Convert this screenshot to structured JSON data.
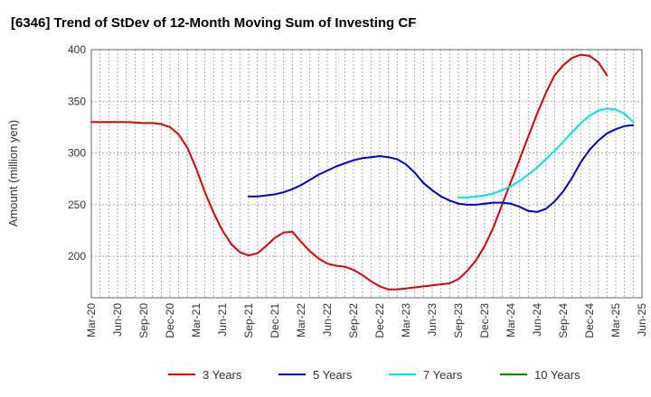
{
  "chart_data": {
    "type": "line",
    "title": "[6346]  Trend of StDev of 12-Month Moving Sum of Investing CF",
    "xlabel": "",
    "ylabel": "Amount (million yen)",
    "ylim": [
      160,
      400
    ],
    "yticks": [
      200,
      250,
      300,
      350,
      400
    ],
    "x_tick_labels": [
      "Mar-20",
      "Jun-20",
      "Sep-20",
      "Dec-20",
      "Mar-21",
      "Jun-21",
      "Sep-21",
      "Dec-21",
      "Mar-22",
      "Jun-22",
      "Sep-22",
      "Dec-22",
      "Mar-23",
      "Jun-23",
      "Sep-23",
      "Dec-23",
      "Mar-24",
      "Jun-24",
      "Sep-24",
      "Dec-24",
      "Mar-25",
      "Jun-25"
    ],
    "grid": true,
    "legend_position": "bottom",
    "series": [
      {
        "name": "3 Years",
        "color": "#dd0000",
        "start_index": 0,
        "values": [
          330,
          330,
          330,
          330,
          330,
          329.5,
          329,
          329,
          328,
          325,
          318,
          305,
          285,
          262,
          242,
          225,
          212,
          204,
          201,
          203,
          210,
          218,
          223,
          224,
          214,
          205,
          198,
          193,
          191,
          190,
          187,
          182,
          176,
          171,
          168,
          168,
          169,
          170,
          171,
          172,
          173,
          174,
          178,
          186,
          196,
          210,
          228,
          250,
          272,
          294,
          316,
          338,
          358,
          375,
          385,
          392,
          395,
          394,
          388,
          375
        ]
      },
      {
        "name": "5 Years",
        "color": "#0000cc",
        "start_index": 18,
        "values": [
          258,
          258,
          259,
          260,
          262,
          265,
          269,
          274,
          279,
          283,
          287,
          290,
          293,
          295,
          296,
          297,
          296,
          294,
          289,
          281,
          271,
          264,
          258,
          254,
          251,
          250,
          250,
          251,
          252,
          252,
          251,
          248,
          244,
          243,
          246,
          253,
          263,
          276,
          291,
          303,
          312,
          319,
          323,
          326,
          327
        ]
      },
      {
        "name": "7 Years",
        "color": "#00e0ee",
        "start_index": 42,
        "values": [
          257,
          257,
          258,
          259,
          261,
          264,
          268,
          273,
          279,
          286,
          294,
          302,
          311,
          320,
          329,
          336,
          341,
          343,
          342,
          338,
          330
        ]
      },
      {
        "name": "10 Years",
        "color": "#008800",
        "start_index": 0,
        "values": []
      }
    ]
  }
}
